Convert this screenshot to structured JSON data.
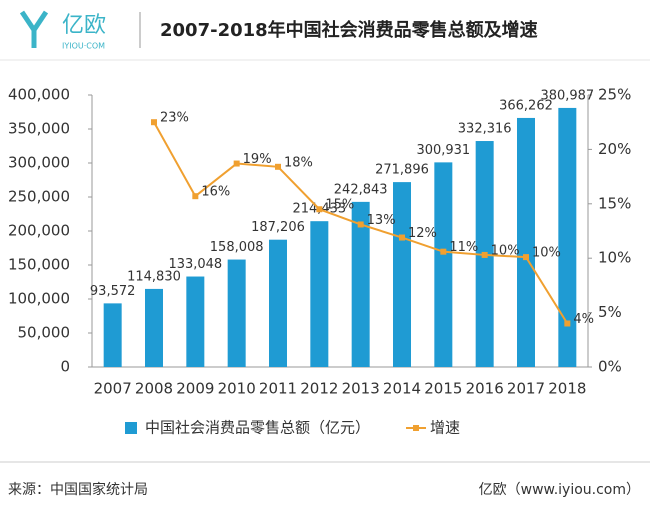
{
  "header": {
    "logo": "亿欧",
    "logo_sub": "IYIOU·COM"
  },
  "chart_data": {
    "type": "bar",
    "title": "2007-2018年中国社会消费品零售总额及增速",
    "categories": [
      "2007",
      "2008",
      "2009",
      "2010",
      "2011",
      "2012",
      "2013",
      "2014",
      "2015",
      "2016",
      "2017",
      "2018"
    ],
    "series": [
      {
        "name": "中国社会消费品零售总额（亿元）",
        "type": "bar",
        "color": "#1f9bd3",
        "values": [
          93572,
          114830,
          133048,
          158008,
          187206,
          214433,
          242843,
          271896,
          300931,
          332316,
          366262,
          380987
        ],
        "value_labels": [
          "93,572",
          "114,830",
          "133,048",
          "158,008",
          "187,206",
          "214,433",
          "242,843",
          "271,896",
          "300,931",
          "332,316",
          "366,262",
          "380,987"
        ]
      },
      {
        "name": "增速",
        "type": "line",
        "axis": "y2",
        "color": "#f0a030",
        "values": [
          null,
          22.5,
          15.7,
          18.7,
          18.4,
          14.5,
          13.1,
          11.9,
          10.6,
          10.3,
          10.1,
          4.0
        ],
        "value_labels": [
          null,
          "23%",
          "16%",
          "19%",
          "18%",
          "15%",
          "13%",
          "12%",
          "11%",
          "10%",
          "10%",
          "4%"
        ]
      }
    ],
    "ylim": [
      0,
      400000
    ],
    "yticks": [
      0,
      {
        "value": 50000,
        "label": "50,000"
      },
      {
        "value": 100000,
        "label": "100,000"
      },
      {
        "value": 150000,
        "label": "150,000"
      },
      {
        "value": 200000,
        "label": "200,000"
      },
      {
        "value": 250000,
        "label": "250,000"
      },
      {
        "value": 300000,
        "label": "300,000"
      },
      {
        "value": 350000,
        "label": "350,000"
      },
      {
        "value": 400000,
        "label": "400,000"
      }
    ],
    "y2lim": [
      0,
      25
    ],
    "y2ticks": [
      {
        "value": 0,
        "label": "0%"
      },
      {
        "value": 5,
        "label": "5%"
      },
      {
        "value": 10,
        "label": "10%"
      },
      {
        "value": 15,
        "label": "15%"
      },
      {
        "value": 20,
        "label": "20%"
      },
      {
        "value": 25,
        "label": "25%"
      }
    ],
    "legend": "bottom"
  },
  "footer": {
    "source": "来源：中国国家统计局",
    "brand": "亿欧（www.iyiou.com）"
  }
}
